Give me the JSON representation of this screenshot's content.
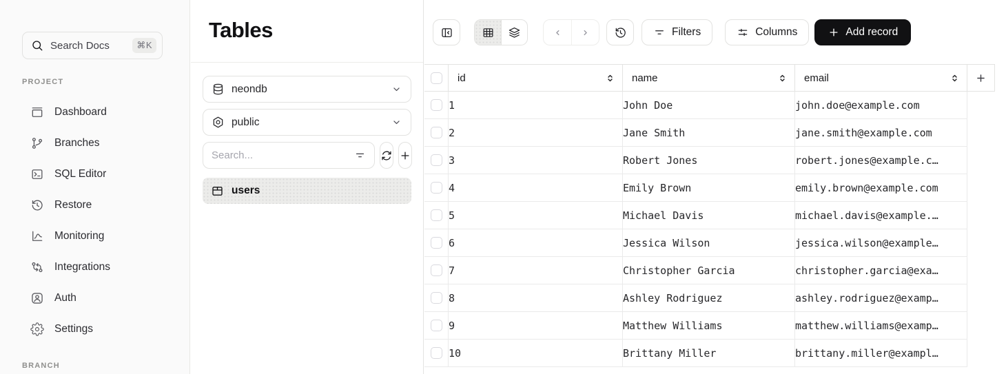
{
  "sidebar": {
    "search": {
      "label": "Search Docs",
      "shortcut": "⌘K",
      "icon": "search-icon"
    },
    "project_section_label": "PROJECT",
    "items": [
      {
        "label": "Dashboard",
        "icon": "dashboard-icon"
      },
      {
        "label": "Branches",
        "icon": "branches-icon"
      },
      {
        "label": "SQL Editor",
        "icon": "sql-editor-icon"
      },
      {
        "label": "Restore",
        "icon": "restore-icon"
      },
      {
        "label": "Monitoring",
        "icon": "monitoring-icon"
      },
      {
        "label": "Integrations",
        "icon": "integrations-icon"
      },
      {
        "label": "Auth",
        "icon": "auth-icon"
      },
      {
        "label": "Settings",
        "icon": "settings-icon"
      }
    ],
    "branch_section_label": "BRANCH"
  },
  "tables_panel": {
    "title": "Tables",
    "database_select": {
      "value": "neondb",
      "icon": "database-icon"
    },
    "schema_select": {
      "value": "public",
      "icon": "schema-icon"
    },
    "table_search": {
      "placeholder": "Search..."
    },
    "tables": [
      {
        "name": "users",
        "icon": "table-icon",
        "active": true
      }
    ]
  },
  "toolbar": {
    "view_mode": "grid",
    "filters": {
      "label": "Filters"
    },
    "columns": {
      "label": "Columns"
    },
    "add_record": {
      "label": "Add record"
    }
  },
  "data_table": {
    "columns": [
      {
        "key": "id",
        "label": "id"
      },
      {
        "key": "name",
        "label": "name"
      },
      {
        "key": "email",
        "label": "email"
      }
    ],
    "rows": [
      {
        "id": "1",
        "name": "John Doe",
        "email": "john.doe@example.com"
      },
      {
        "id": "2",
        "name": "Jane Smith",
        "email": "jane.smith@example.com"
      },
      {
        "id": "3",
        "name": "Robert Jones",
        "email": "robert.jones@example.com"
      },
      {
        "id": "4",
        "name": "Emily Brown",
        "email": "emily.brown@example.com"
      },
      {
        "id": "5",
        "name": "Michael Davis",
        "email": "michael.davis@example.com"
      },
      {
        "id": "6",
        "name": "Jessica Wilson",
        "email": "jessica.wilson@example.com"
      },
      {
        "id": "7",
        "name": "Christopher Garcia",
        "email": "christopher.garcia@example.com"
      },
      {
        "id": "8",
        "name": "Ashley Rodriguez",
        "email": "ashley.rodriguez@example.com"
      },
      {
        "id": "9",
        "name": "Matthew Williams",
        "email": "matthew.williams@example.com"
      },
      {
        "id": "10",
        "name": "Brittany Miller",
        "email": "brittany.miller@example.com"
      }
    ]
  },
  "colors": {
    "sidebar_bg": "#fafafa",
    "panel_bg": "#ffffff",
    "border": "#e3e3e1",
    "row_border": "#eaeaea",
    "active_item_bg": "#ececea",
    "accent_button_bg": "#111113",
    "accent_button_text": "#ffffff",
    "text_primary": "#18181b",
    "text_muted": "#71717a"
  }
}
